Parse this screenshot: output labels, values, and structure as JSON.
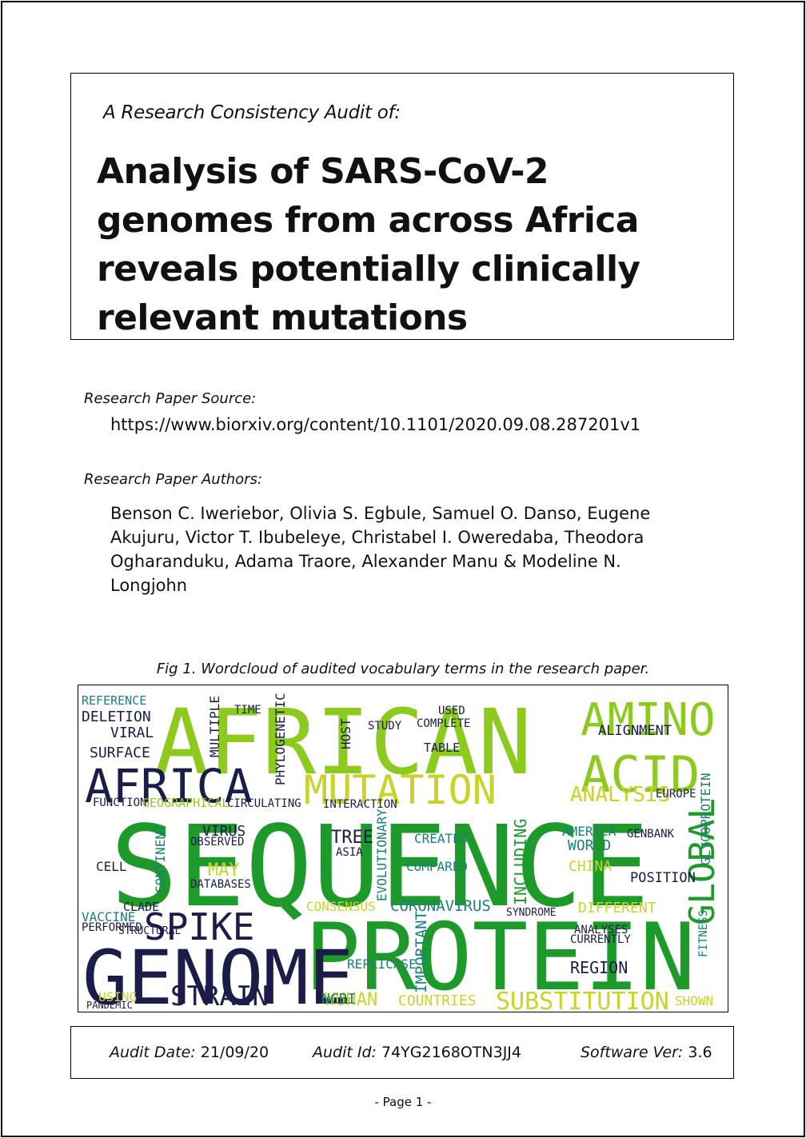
{
  "header": {
    "audit_prefix": "A Research Consistency Audit of:",
    "paper_title": "Analysis of SARS-CoV-2 genomes from across Africa reveals potentially clinically relevant mutations"
  },
  "source": {
    "label": "Research Paper Source:",
    "url": "https://www.biorxiv.org/content/10.1101/2020.09.08.287201v1"
  },
  "authors": {
    "label": "Research Paper Authors:",
    "names": "Benson C. Iweriebor, Olivia S. Egbule, Samuel O. Danso, Eugene Akujuru, Victor T. Ibubeleye, Christabel I. Oweredaba, Theodora Ogharanduku, Adama Traore, Alexander Manu & Modeline N. Longjohn"
  },
  "figure": {
    "caption": "Fig 1. Wordcloud of audited vocabulary terms in the research paper.",
    "colors": {
      "dark": "#1c1c4a",
      "green": "#1e9a2a",
      "lime": "#8ccb1e",
      "yellow": "#c7d42a",
      "teal": "#1c7f7a"
    },
    "words": [
      {
        "text": "AFRICAN",
        "color": "#8ccb1e"
      },
      {
        "text": "SEQUENCE",
        "color": "#1e9a2a"
      },
      {
        "text": "PROTEIN",
        "color": "#1e9a2a"
      },
      {
        "text": "GENOME",
        "color": "#1c1c4a"
      },
      {
        "text": "AFRICA",
        "color": "#1c1c4a"
      },
      {
        "text": "AMINO",
        "color": "#8ccb1e"
      },
      {
        "text": "ACID",
        "color": "#8ccb1e"
      },
      {
        "text": "MUTATION",
        "color": "#c7d42a"
      },
      {
        "text": "SPIKE",
        "color": "#1c1c4a"
      },
      {
        "text": "STRAIN",
        "color": "#1c1c4a"
      },
      {
        "text": "GLOBAL",
        "color": "#1e9a2a"
      },
      {
        "text": "SUBSTITUTION",
        "color": "#c7d42a"
      },
      {
        "text": "ANALYSIS",
        "color": "#c7d42a"
      },
      {
        "text": "DELETION",
        "color": "#1c1c4a"
      },
      {
        "text": "VIRAL",
        "color": "#1c1c4a"
      },
      {
        "text": "SURFACE",
        "color": "#1c1c4a"
      },
      {
        "text": "REFERENCE",
        "color": "#1c7f7a"
      },
      {
        "text": "ALIGNMENT",
        "color": "#1c1c4a"
      },
      {
        "text": "CORONAVIRUS",
        "color": "#1c7f7a"
      },
      {
        "text": "CONSENSUS",
        "color": "#c7d42a"
      },
      {
        "text": "VACCINE",
        "color": "#1c7f7a"
      },
      {
        "text": "WUHAN",
        "color": "#c7d42a"
      },
      {
        "text": "COUNTRIES",
        "color": "#c7d42a"
      },
      {
        "text": "REGION",
        "color": "#1c1c4a"
      },
      {
        "text": "INCLUDING",
        "color": "#1e9a2a"
      },
      {
        "text": "GLYCOPROTEIN",
        "color": "#1c7f7a"
      },
      {
        "text": "POSITION",
        "color": "#1c1c4a"
      },
      {
        "text": "DIFFERENT",
        "color": "#c7d42a"
      },
      {
        "text": "CHINA",
        "color": "#c7d42a"
      },
      {
        "text": "AMERICA",
        "color": "#1c7f7a"
      },
      {
        "text": "WORLD",
        "color": "#1c7f7a"
      },
      {
        "text": "CREATED",
        "color": "#1c7f7a"
      },
      {
        "text": "COMPARED",
        "color": "#1c7f7a"
      },
      {
        "text": "TREE",
        "color": "#1c1c4a"
      },
      {
        "text": "ASIA",
        "color": "#1c1c4a"
      },
      {
        "text": "GENBANK",
        "color": "#1c1c4a"
      },
      {
        "text": "CONTINENT",
        "color": "#1c7f7a"
      },
      {
        "text": "VIRUS",
        "color": "#1c1c4a"
      },
      {
        "text": "CELL",
        "color": "#1c1c4a"
      },
      {
        "text": "CLADE",
        "color": "#1c1c4a"
      },
      {
        "text": "NCBI",
        "color": "#1c7f7a"
      },
      {
        "text": "TIME",
        "color": "#1c1c4a"
      },
      {
        "text": "MULTIPLE",
        "color": "#1c1c4a"
      },
      {
        "text": "PHYLOGENETIC",
        "color": "#1c1c4a"
      },
      {
        "text": "HOST",
        "color": "#1c1c4a"
      },
      {
        "text": "STUDY",
        "color": "#1c1c4a"
      },
      {
        "text": "TABLE",
        "color": "#1c1c4a"
      },
      {
        "text": "COMPLETE",
        "color": "#1c1c4a"
      },
      {
        "text": "USED",
        "color": "#1c1c4a"
      },
      {
        "text": "MAY",
        "color": "#c7d42a"
      },
      {
        "text": "DATABASES",
        "color": "#1c1c4a"
      },
      {
        "text": "OBSERVED",
        "color": "#1c1c4a"
      },
      {
        "text": "FUNCTION",
        "color": "#1c1c4a"
      },
      {
        "text": "GEOGRAPHICAL",
        "color": "#8ccb1e"
      },
      {
        "text": "CIRCULATING",
        "color": "#1c1c4a"
      },
      {
        "text": "INTERACTION",
        "color": "#1c1c4a"
      },
      {
        "text": "EVOLUTIONARY",
        "color": "#1c7f7a"
      },
      {
        "text": "EUROPE",
        "color": "#1c1c4a"
      },
      {
        "text": "CURRENTLY",
        "color": "#1c1c4a"
      },
      {
        "text": "ANALYSES",
        "color": "#1c1c4a"
      },
      {
        "text": "SYNDROME",
        "color": "#1c1c4a"
      },
      {
        "text": "IMPORTANT",
        "color": "#1c7f7a"
      },
      {
        "text": "REPLICASE",
        "color": "#1c7f7a"
      },
      {
        "text": "PERFORMED",
        "color": "#1c1c4a"
      },
      {
        "text": "STRUCTURAL",
        "color": "#1c1c4a"
      },
      {
        "text": "SHOWN",
        "color": "#c7d42a"
      },
      {
        "text": "USING",
        "color": "#c7d42a"
      },
      {
        "text": "PANDEMIC",
        "color": "#1c1c4a"
      },
      {
        "text": "FITNESS",
        "color": "#1c7f7a"
      }
    ]
  },
  "footer": {
    "audit_date_label": "Audit Date:",
    "audit_date_value": "21/09/20",
    "audit_id_label": "Audit Id:",
    "audit_id_value": "74YG2168OTN3JJ4",
    "software_label": "Software Ver:",
    "software_value": "3.6"
  },
  "page": {
    "number_text": "-  Page 1  -"
  }
}
